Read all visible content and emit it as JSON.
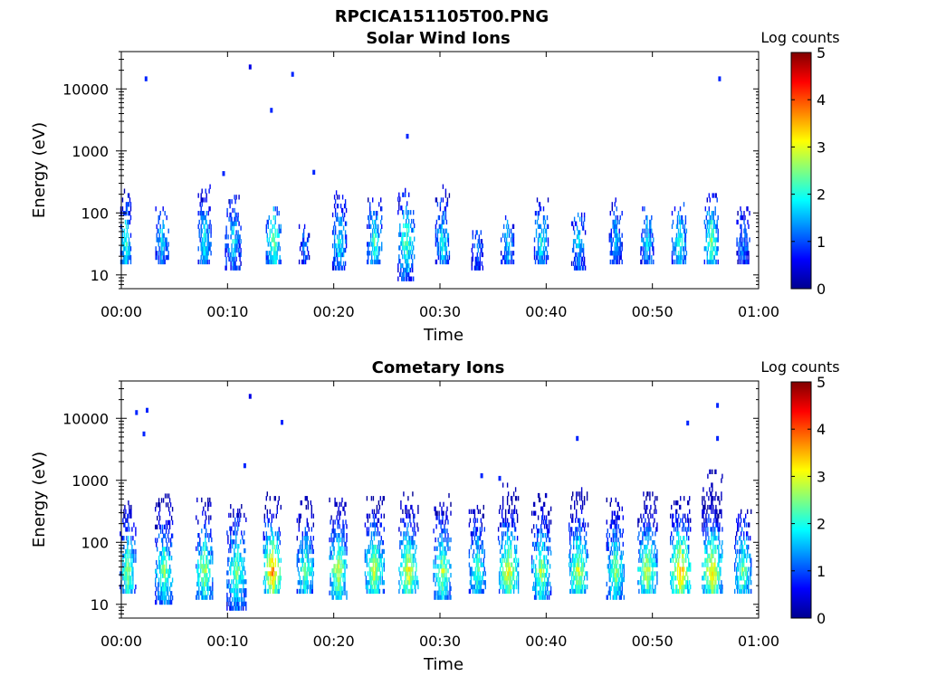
{
  "figure_title": "RPCICA151105T00.PNG",
  "colors": {
    "axis": "#000000",
    "background": "#ffffff",
    "colormap": "jet"
  },
  "chart_data": [
    {
      "type": "heatmap",
      "title": "Solar Wind Ions",
      "xlabel": "Time",
      "ylabel": "Energy (eV)",
      "x_ticks": [
        "00:00",
        "00:10",
        "00:20",
        "00:30",
        "00:40",
        "00:50",
        "01:00"
      ],
      "x_range_minutes": [
        0,
        60
      ],
      "y_scale": "log",
      "y_ticks": [
        "10",
        "100",
        "1000",
        "10000"
      ],
      "y_range_eV": [
        6,
        40000
      ],
      "colorbar": {
        "label": "Log counts",
        "range": [
          0,
          5
        ],
        "ticks": [
          "0",
          "1",
          "2",
          "3",
          "4",
          "5"
        ]
      },
      "bursts": [
        {
          "t": 0.4,
          "w": 1.0,
          "lo": 15,
          "hi": 220,
          "peak": 2.2
        },
        {
          "t": 3.8,
          "w": 1.2,
          "lo": 15,
          "hi": 120,
          "peak": 1.8
        },
        {
          "t": 7.8,
          "w": 1.2,
          "lo": 15,
          "hi": 280,
          "peak": 2.0
        },
        {
          "t": 10.5,
          "w": 1.5,
          "lo": 12,
          "hi": 180,
          "peak": 1.8
        },
        {
          "t": 14.3,
          "w": 1.4,
          "lo": 15,
          "hi": 120,
          "peak": 2.6
        },
        {
          "t": 17.2,
          "w": 1.0,
          "lo": 15,
          "hi": 60,
          "peak": 1.2
        },
        {
          "t": 20.5,
          "w": 1.3,
          "lo": 12,
          "hi": 200,
          "peak": 2.0
        },
        {
          "t": 23.8,
          "w": 1.4,
          "lo": 15,
          "hi": 180,
          "peak": 2.2
        },
        {
          "t": 26.8,
          "w": 1.6,
          "lo": 8,
          "hi": 250,
          "peak": 2.4
        },
        {
          "t": 30.2,
          "w": 1.3,
          "lo": 15,
          "hi": 250,
          "peak": 2.0
        },
        {
          "t": 33.5,
          "w": 1.1,
          "lo": 12,
          "hi": 50,
          "peak": 1.2
        },
        {
          "t": 36.3,
          "w": 1.2,
          "lo": 15,
          "hi": 80,
          "peak": 1.8
        },
        {
          "t": 39.5,
          "w": 1.3,
          "lo": 15,
          "hi": 150,
          "peak": 2.0
        },
        {
          "t": 43.0,
          "w": 1.3,
          "lo": 12,
          "hi": 100,
          "peak": 1.8
        },
        {
          "t": 46.5,
          "w": 1.2,
          "lo": 15,
          "hi": 150,
          "peak": 1.6
        },
        {
          "t": 49.5,
          "w": 1.3,
          "lo": 15,
          "hi": 120,
          "peak": 1.8
        },
        {
          "t": 52.5,
          "w": 1.4,
          "lo": 15,
          "hi": 150,
          "peak": 2.2
        },
        {
          "t": 55.5,
          "w": 1.3,
          "lo": 15,
          "hi": 200,
          "peak": 2.6
        },
        {
          "t": 58.5,
          "w": 1.2,
          "lo": 15,
          "hi": 120,
          "peak": 1.4
        }
      ],
      "dots": [
        {
          "t": 2.2,
          "e": 13500,
          "v": 0.8
        },
        {
          "t": 12.0,
          "e": 21000,
          "v": 0.5
        },
        {
          "t": 14.0,
          "e": 4200,
          "v": 0.8
        },
        {
          "t": 16.0,
          "e": 16000,
          "v": 0.8
        },
        {
          "t": 26.8,
          "e": 1600,
          "v": 0.8
        },
        {
          "t": 56.2,
          "e": 13500,
          "v": 0.8
        },
        {
          "t": 18.0,
          "e": 420,
          "v": 0.8
        },
        {
          "t": 9.5,
          "e": 400,
          "v": 0.8
        }
      ]
    },
    {
      "type": "heatmap",
      "title": "Cometary Ions",
      "xlabel": "Time",
      "ylabel": "Energy (eV)",
      "x_ticks": [
        "00:00",
        "00:10",
        "00:20",
        "00:30",
        "00:40",
        "00:50",
        "01:00"
      ],
      "x_range_minutes": [
        0,
        60
      ],
      "y_scale": "log",
      "y_ticks": [
        "10",
        "100",
        "1000",
        "10000"
      ],
      "y_range_eV": [
        6,
        40000
      ],
      "colorbar": {
        "label": "Log counts",
        "range": [
          0,
          5
        ],
        "ticks": [
          "0",
          "1",
          "2",
          "3",
          "4",
          "5"
        ]
      },
      "bursts": [
        {
          "t": 0.6,
          "w": 1.5,
          "lo": 15,
          "hi": 500,
          "peak": 2.7
        },
        {
          "t": 4.0,
          "w": 1.7,
          "lo": 10,
          "hi": 550,
          "peak": 2.6
        },
        {
          "t": 7.8,
          "w": 1.6,
          "lo": 12,
          "hi": 500,
          "peak": 2.8
        },
        {
          "t": 10.8,
          "w": 1.8,
          "lo": 8,
          "hi": 400,
          "peak": 2.6
        },
        {
          "t": 14.2,
          "w": 1.7,
          "lo": 15,
          "hi": 600,
          "peak": 3.8
        },
        {
          "t": 17.3,
          "w": 1.6,
          "lo": 15,
          "hi": 550,
          "peak": 2.5
        },
        {
          "t": 20.4,
          "w": 1.7,
          "lo": 12,
          "hi": 500,
          "peak": 3.0
        },
        {
          "t": 23.8,
          "w": 1.8,
          "lo": 15,
          "hi": 550,
          "peak": 3.0
        },
        {
          "t": 27.0,
          "w": 1.8,
          "lo": 15,
          "hi": 600,
          "peak": 3.2
        },
        {
          "t": 30.2,
          "w": 1.7,
          "lo": 12,
          "hi": 550,
          "peak": 2.8
        },
        {
          "t": 33.5,
          "w": 1.6,
          "lo": 15,
          "hi": 400,
          "peak": 2.4
        },
        {
          "t": 36.4,
          "w": 1.9,
          "lo": 15,
          "hi": 900,
          "peak": 3.2
        },
        {
          "t": 39.5,
          "w": 1.8,
          "lo": 12,
          "hi": 600,
          "peak": 2.8
        },
        {
          "t": 43.0,
          "w": 1.8,
          "lo": 15,
          "hi": 700,
          "peak": 3.0
        },
        {
          "t": 46.5,
          "w": 1.7,
          "lo": 12,
          "hi": 500,
          "peak": 2.7
        },
        {
          "t": 49.5,
          "w": 1.8,
          "lo": 15,
          "hi": 600,
          "peak": 3.0
        },
        {
          "t": 52.6,
          "w": 1.9,
          "lo": 15,
          "hi": 550,
          "peak": 3.6
        },
        {
          "t": 55.6,
          "w": 1.9,
          "lo": 15,
          "hi": 1300,
          "peak": 3.4
        },
        {
          "t": 58.5,
          "w": 1.6,
          "lo": 15,
          "hi": 300,
          "peak": 2.6
        }
      ],
      "dots": [
        {
          "t": 1.3,
          "e": 11500,
          "v": 0.8
        },
        {
          "t": 2.3,
          "e": 12500,
          "v": 0.8
        },
        {
          "t": 2.0,
          "e": 5200,
          "v": 0.8
        },
        {
          "t": 12.0,
          "e": 21000,
          "v": 0.5
        },
        {
          "t": 15.0,
          "e": 8000,
          "v": 0.8
        },
        {
          "t": 11.5,
          "e": 1600,
          "v": 0.8
        },
        {
          "t": 42.8,
          "e": 4400,
          "v": 0.8
        },
        {
          "t": 53.2,
          "e": 7800,
          "v": 0.8
        },
        {
          "t": 56.0,
          "e": 15000,
          "v": 0.8
        },
        {
          "t": 56.0,
          "e": 4400,
          "v": 0.8
        },
        {
          "t": 33.8,
          "e": 1100,
          "v": 0.8
        },
        {
          "t": 35.5,
          "e": 1000,
          "v": 0.8
        }
      ]
    }
  ]
}
